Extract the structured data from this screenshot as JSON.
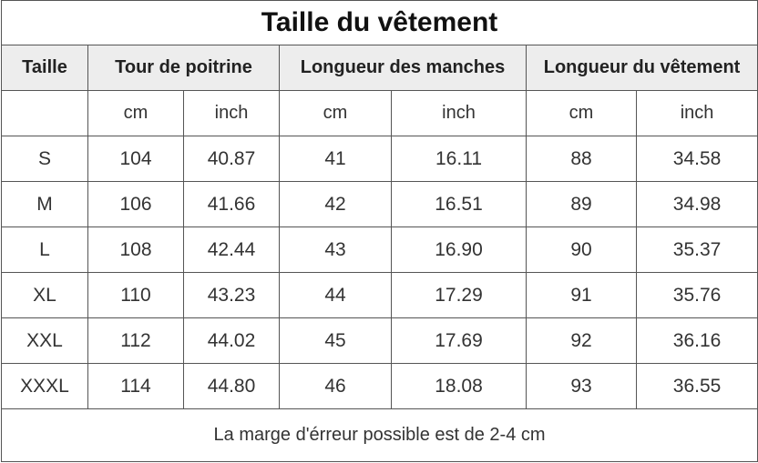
{
  "title": "Taille du vêtement",
  "headers": {
    "size": "Taille",
    "chest": "Tour de poitrine",
    "sleeve": "Longueur des manches",
    "length": "Longueur du vêtement"
  },
  "units": [
    "cm",
    "inch",
    "cm",
    "inch",
    "cm",
    "inch"
  ],
  "rows": [
    [
      "S",
      "104",
      "40.87",
      "41",
      "16.11",
      "88",
      "34.58"
    ],
    [
      "M",
      "106",
      "41.66",
      "42",
      "16.51",
      "89",
      "34.98"
    ],
    [
      "L",
      "108",
      "42.44",
      "43",
      "16.90",
      "90",
      "35.37"
    ],
    [
      "XL",
      "110",
      "43.23",
      "44",
      "17.29",
      "91",
      "35.76"
    ],
    [
      "XXL",
      "112",
      "44.02",
      "45",
      "17.69",
      "92",
      "36.16"
    ],
    [
      "XXXL",
      "114",
      "44.80",
      "46",
      "18.08",
      "93",
      "36.55"
    ]
  ],
  "note": "La marge d'érreur possible est de 2-4 cm"
}
